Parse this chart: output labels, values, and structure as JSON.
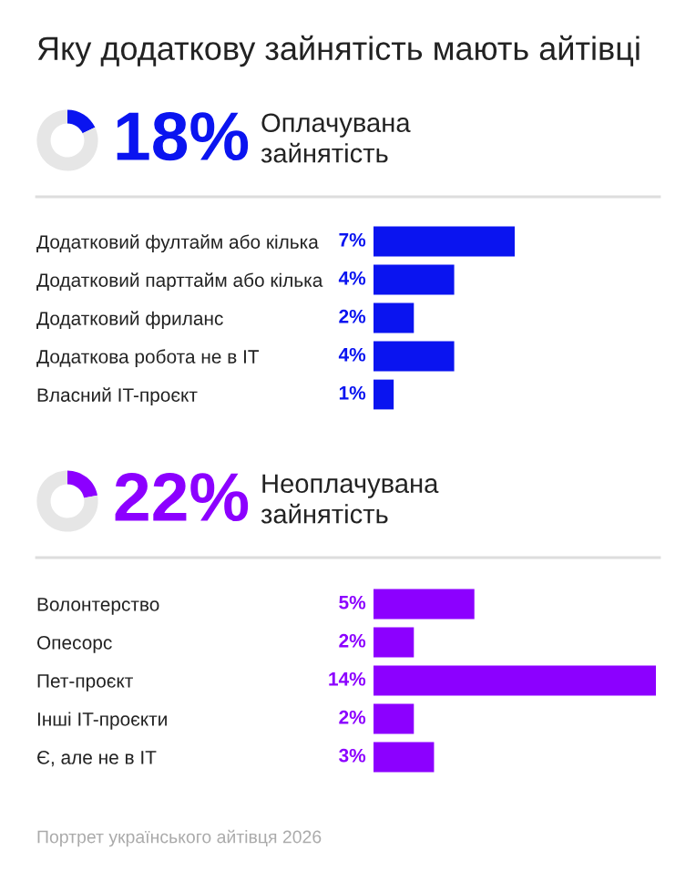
{
  "chart_data": [
    {
      "type": "other",
      "title": "Яку додаткову зайнятість мають айтівці",
      "annotations": [
        "Портрет українського айтівця 2026"
      ]
    },
    {
      "type": "donut",
      "title": "Оплачувана\nзайнятість",
      "annotations": [
        "18%"
      ],
      "categories": [
        null,
        null
      ],
      "values": [
        18,
        82
      ],
      "colors": [
        "#0a14f0",
        "#e6e6e6"
      ]
    },
    {
      "type": "bar",
      "orientation": "horizontal",
      "categories": [
        "Додатковий фултайм або кілька",
        "Додатковий парттайм або кілька",
        "Додатковий фриланс",
        "Додаткова робота не в IT",
        "Власний IT-проєкт"
      ],
      "values": [
        7,
        4,
        2,
        4,
        1
      ],
      "value_labels": [
        "7%",
        "4%",
        "2%",
        "4%",
        "1%"
      ],
      "color": "#0a14f0",
      "tick_labels": "y",
      "grid": false,
      "legend": false
    },
    {
      "type": "donut",
      "title": "Неоплачувана\nзайнятість",
      "annotations": [
        "22%"
      ],
      "categories": [
        null,
        null
      ],
      "values": [
        22,
        78
      ],
      "colors": [
        "#8c00ff",
        "#e6e6e6"
      ]
    },
    {
      "type": "bar",
      "orientation": "horizontal",
      "categories": [
        "Волонтерство",
        "Опесорс",
        "Пет-проєкт",
        "Інші IT-проєкти",
        "Є, але не в IT"
      ],
      "values": [
        5,
        2,
        14,
        2,
        3
      ],
      "value_labels": [
        "5%",
        "2%",
        "14%",
        "2%",
        "3%"
      ],
      "color": "#8c00ff",
      "tick_labels": "y",
      "grid": false,
      "legend": false
    }
  ]
}
